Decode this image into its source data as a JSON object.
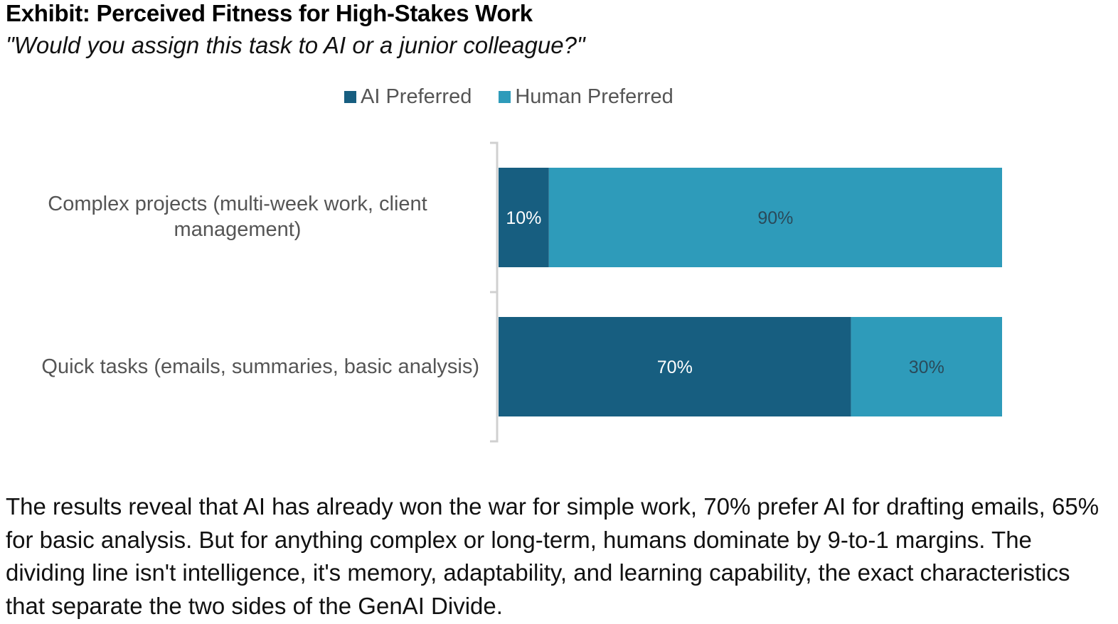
{
  "header": {
    "title": "Exhibit: Perceived Fitness for High-Stakes Work",
    "subtitle": "\"Would you assign this task to AI or a junior colleague?\""
  },
  "colors": {
    "ai": "#175e80",
    "human": "#2e9bba",
    "axis": "#d0d0d0",
    "label_light": "#ffffff",
    "label_dark": "#2a4a5a"
  },
  "chart_data": {
    "type": "bar",
    "orientation": "horizontal",
    "stacked": true,
    "categories": [
      "Complex projects (multi-week work, client management)",
      "Quick tasks (emails, summaries, basic analysis)"
    ],
    "series": [
      {
        "name": "AI Preferred",
        "values": [
          10,
          70
        ],
        "labels": [
          "10%",
          "70%"
        ]
      },
      {
        "name": "Human Preferred",
        "values": [
          90,
          30
        ],
        "labels": [
          "90%",
          "30%"
        ]
      }
    ],
    "xlim": [
      0,
      100
    ],
    "legend": "top-center",
    "grid": false,
    "data_labels": true
  },
  "caption": "The results reveal that AI has already won the war for simple work, 70% prefer AI for drafting emails, 65% for basic analysis. But for anything complex or long-term, humans dominate by 9-to-1 margins. The dividing line isn't intelligence, it's memory, adaptability, and learning capability, the exact characteristics that separate the two sides of the GenAI Divide."
}
